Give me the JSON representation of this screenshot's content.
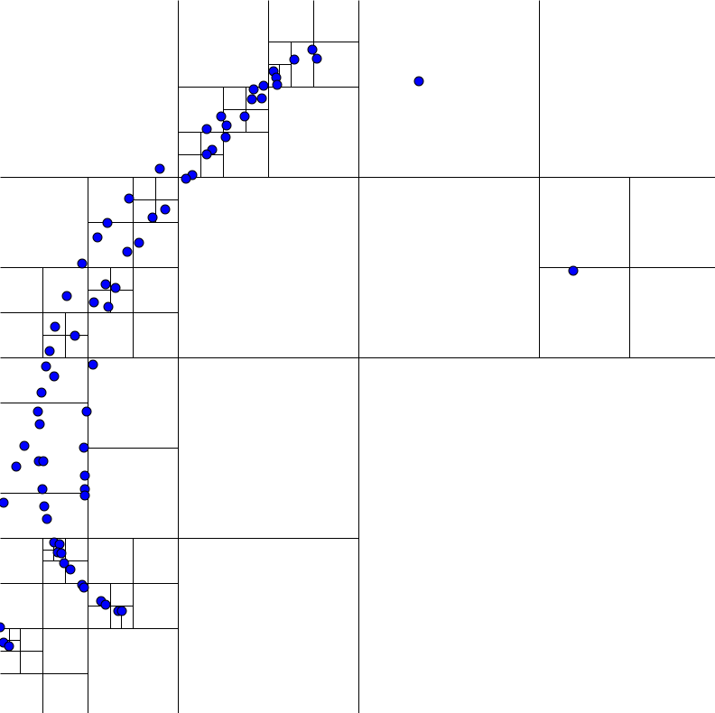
{
  "diagram": {
    "kind": "quadtree-partition",
    "colors": {
      "background": "#ffffff",
      "partition_line": "#000000",
      "point_fill": "#0000ff",
      "point_stroke": "#000000"
    },
    "point_count": 92
  }
}
